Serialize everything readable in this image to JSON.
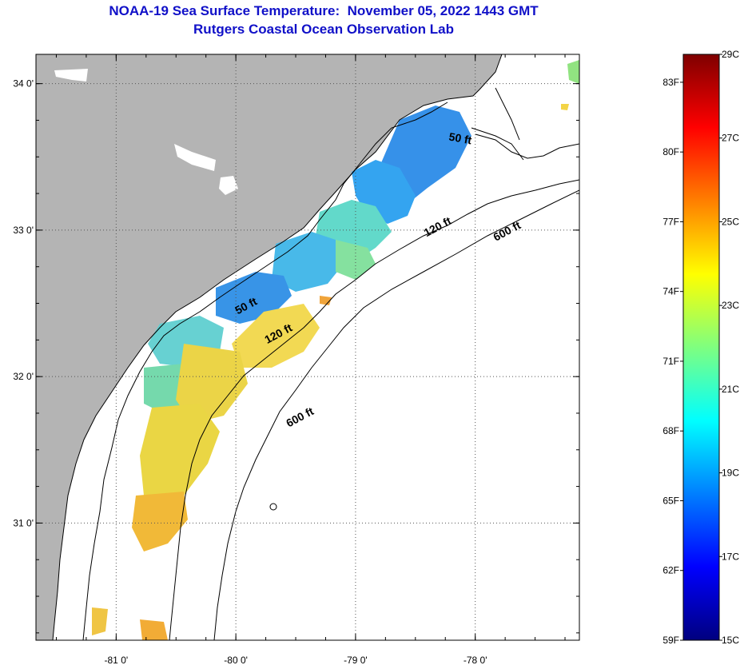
{
  "title": {
    "line1": "NOAA-19 Sea Surface Temperature:  November 05, 2022 1443 GMT",
    "line2": "Rutgers Coastal Ocean Observation Lab"
  },
  "map": {
    "lon_range": [
      -81.67,
      -77.13
    ],
    "lat_range": [
      30.2,
      34.2
    ],
    "lon_ticks": [
      {
        "value": -81,
        "label": "-81 0'"
      },
      {
        "value": -80,
        "label": "-80 0'"
      },
      {
        "value": -79,
        "label": "-79 0'"
      },
      {
        "value": -78,
        "label": "-78 0'"
      }
    ],
    "lat_ticks": [
      {
        "value": 34,
        "label": "34 0'"
      },
      {
        "value": 33,
        "label": "33 0'"
      },
      {
        "value": 32,
        "label": "32 0'"
      },
      {
        "value": 31,
        "label": "31 0'"
      }
    ],
    "land_color": "#b4b4b4",
    "ocean_color": "#ffffff",
    "contour_labels": [
      {
        "text": "50 ft",
        "lon": -78.13,
        "lat": 33.6
      },
      {
        "text": "120 ft",
        "lon": -78.3,
        "lat": 33.0
      },
      {
        "text": "600 ft",
        "lon": -77.72,
        "lat": 32.97
      },
      {
        "text": "50 ft",
        "lon": -79.9,
        "lat": 32.46
      },
      {
        "text": "120 ft",
        "lon": -79.63,
        "lat": 32.27
      },
      {
        "text": "600 ft",
        "lon": -79.45,
        "lat": 31.7
      }
    ]
  },
  "colorbar": {
    "min_c": 15,
    "max_c": 29,
    "celsius_labels": [
      "29C",
      "27C",
      "25C",
      "23C",
      "21C",
      "19C",
      "17C",
      "15C"
    ],
    "fahrenheit_labels": [
      "83F",
      "80F",
      "77F",
      "74F",
      "71F",
      "68F",
      "65F",
      "62F",
      "59F"
    ],
    "fahrenheit_values": [
      83,
      80,
      77,
      74,
      71,
      68,
      65,
      62,
      59
    ],
    "colors": [
      "#00007f",
      "#0000ff",
      "#007fff",
      "#00ffff",
      "#7fff7f",
      "#ffff00",
      "#ff7f00",
      "#ff0000",
      "#7f0000"
    ]
  }
}
